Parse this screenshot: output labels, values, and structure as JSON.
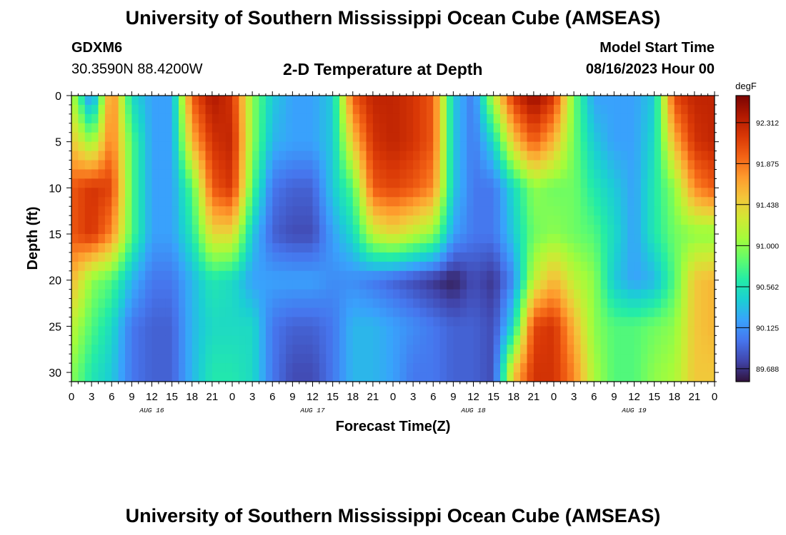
{
  "header": {
    "title": "University of Southern Mississippi Ocean Cube (AMSEAS)",
    "station": "GDXM6",
    "coords": "30.3590N  88.4200W",
    "subtitle": "2-D Temperature at Depth",
    "start_label": "Model Start Time",
    "start_value": "08/16/2023 Hour 00"
  },
  "footer": {
    "title": "University of Southern Mississippi Ocean Cube (AMSEAS)"
  },
  "chart_data": {
    "type": "heatmap",
    "title": "2-D Temperature at Depth",
    "xlabel": "Forecast Time(Z)",
    "ylabel": "Depth (ft)",
    "x_range": [
      0,
      96
    ],
    "x_tick_labels": [
      "0",
      "3",
      "6",
      "9",
      "12",
      "15",
      "18",
      "21",
      "0",
      "3",
      "6",
      "9",
      "12",
      "15",
      "18",
      "21",
      "0",
      "3",
      "6",
      "9",
      "12",
      "15",
      "18",
      "21",
      "0",
      "3",
      "6",
      "9",
      "12",
      "15",
      "18",
      "21",
      "0"
    ],
    "date_labels": [
      "AUG 16",
      "AUG 17",
      "AUG 18",
      "AUG 19"
    ],
    "y_range": [
      0,
      31
    ],
    "y_ticks": [
      0,
      5,
      10,
      15,
      20,
      25,
      30
    ],
    "colorbar": {
      "units": "degF",
      "range": [
        89.55,
        92.6
      ],
      "tick_values": [
        92.312,
        91.875,
        91.438,
        91.0,
        90.562,
        90.125,
        89.688
      ],
      "tick_labels": [
        "92.312",
        "91.875",
        "91.438",
        "91.000",
        "90.562",
        "90.125",
        "89.688"
      ],
      "colors": [
        "#30123b",
        "#4145ab",
        "#4675ed",
        "#39a2fc",
        "#1bcfd4",
        "#24eca6",
        "#61fc6c",
        "#a4fc3b",
        "#d1e834",
        "#f3c63a",
        "#fe9b2d",
        "#f36315",
        "#d93806",
        "#b11901",
        "#7a0402"
      ]
    },
    "x_hours": [
      0,
      3,
      6,
      9,
      12,
      15,
      18,
      21,
      24,
      27,
      30,
      33,
      36,
      39,
      42,
      45,
      48,
      51,
      54,
      57,
      60,
      63,
      66,
      69,
      72,
      75,
      78,
      81,
      84,
      87,
      90,
      93,
      96
    ],
    "depths_ft": [
      0,
      5,
      10,
      15,
      20,
      25,
      30
    ],
    "values_degF": [
      [
        91.2,
        90.0,
        91.9,
        90.5,
        90.2,
        90.2,
        92.0,
        92.4,
        92.2,
        91.0,
        90.4,
        90.2,
        90.2,
        90.4,
        92.0,
        92.3,
        92.3,
        92.2,
        92.0,
        90.4,
        90.0,
        91.2,
        92.2,
        92.5,
        92.2,
        90.9,
        90.2,
        90.2,
        90.2,
        90.4,
        92.1,
        92.3,
        92.3
      ],
      [
        91.5,
        91.0,
        91.9,
        90.8,
        90.2,
        90.2,
        91.6,
        92.2,
        92.3,
        91.0,
        90.3,
        90.2,
        90.2,
        90.4,
        91.5,
        92.2,
        92.3,
        92.2,
        92.0,
        90.4,
        90.0,
        90.5,
        91.5,
        92.0,
        91.6,
        90.9,
        90.4,
        90.2,
        90.2,
        90.5,
        91.6,
        92.2,
        92.3
      ],
      [
        92.0,
        92.2,
        92.1,
        90.8,
        90.2,
        90.2,
        90.8,
        92.0,
        92.2,
        90.8,
        90.0,
        89.9,
        89.9,
        90.4,
        90.8,
        92.0,
        92.1,
        92.0,
        91.8,
        90.4,
        90.0,
        90.0,
        90.5,
        91.0,
        90.9,
        90.9,
        90.6,
        90.4,
        90.2,
        90.6,
        91.0,
        91.8,
        92.0
      ],
      [
        92.0,
        92.2,
        91.8,
        90.8,
        90.2,
        90.2,
        90.6,
        91.4,
        91.4,
        90.4,
        89.9,
        89.8,
        89.8,
        90.2,
        90.5,
        91.2,
        91.4,
        91.2,
        91.0,
        90.2,
        90.0,
        90.0,
        90.4,
        90.9,
        91.0,
        90.9,
        90.8,
        90.5,
        90.2,
        90.6,
        90.9,
        91.0,
        91.0
      ],
      [
        91.6,
        91.0,
        90.8,
        90.3,
        90.0,
        90.0,
        90.3,
        90.6,
        90.5,
        90.2,
        90.2,
        90.2,
        90.2,
        90.1,
        90.1,
        90.0,
        89.9,
        89.8,
        89.7,
        89.6,
        89.8,
        89.7,
        90.1,
        91.2,
        91.6,
        91.2,
        91.0,
        90.4,
        90.2,
        90.3,
        90.8,
        91.5,
        91.6
      ],
      [
        91.2,
        90.8,
        90.5,
        90.0,
        89.9,
        89.9,
        90.3,
        90.5,
        90.5,
        90.5,
        90.0,
        89.9,
        89.9,
        90.0,
        90.3,
        90.3,
        90.2,
        90.1,
        90.0,
        89.9,
        89.9,
        89.8,
        90.5,
        92.1,
        92.2,
        91.6,
        91.0,
        90.8,
        90.8,
        90.9,
        91.0,
        91.5,
        91.6
      ],
      [
        91.0,
        90.6,
        90.4,
        90.0,
        89.9,
        89.9,
        90.3,
        90.6,
        90.6,
        90.5,
        90.0,
        89.8,
        89.8,
        90.0,
        90.3,
        90.3,
        90.2,
        90.0,
        90.0,
        89.9,
        89.9,
        89.8,
        91.5,
        92.2,
        92.2,
        91.8,
        91.1,
        90.8,
        90.8,
        91.0,
        91.1,
        91.5,
        91.5
      ]
    ]
  }
}
